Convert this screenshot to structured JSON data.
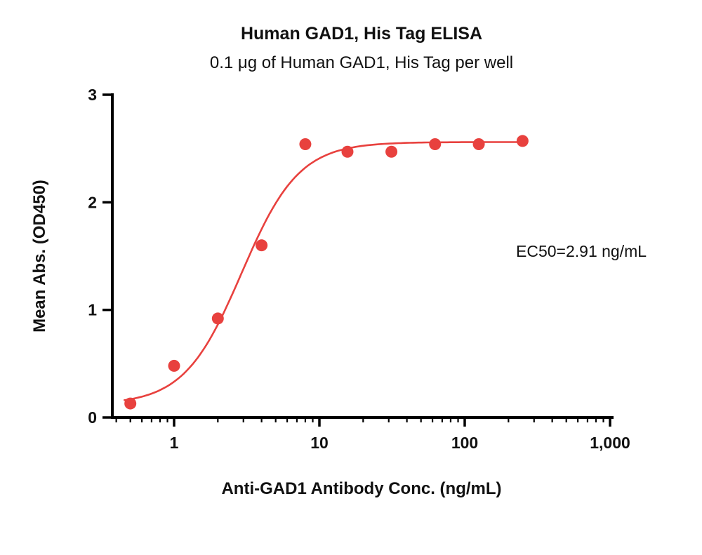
{
  "chart_data": {
    "type": "scatter",
    "title": "Human GAD1, His Tag ELISA",
    "subtitle": "0.1 μg of Human GAD1, His Tag per well",
    "xlabel": "Anti-GAD1 Antibody Conc. (ng/mL)",
    "ylabel": "Mean Abs. (OD450)",
    "annotation": "EC50=2.91 ng/mL",
    "x_scale": "log",
    "x_ticks": [
      1,
      10,
      100,
      1000
    ],
    "x_tick_labels": [
      "1",
      "10",
      "100",
      "1,000"
    ],
    "y_ticks": [
      0,
      1,
      2,
      3
    ],
    "y_tick_labels": [
      "0",
      "1",
      "2",
      "3"
    ],
    "x_range": [
      0.38,
      1130
    ],
    "y_range": [
      0,
      3
    ],
    "points": [
      {
        "x": 0.5,
        "y": 0.13
      },
      {
        "x": 1,
        "y": 0.48
      },
      {
        "x": 2,
        "y": 0.92
      },
      {
        "x": 4,
        "y": 1.6
      },
      {
        "x": 8,
        "y": 2.54
      },
      {
        "x": 15.6,
        "y": 2.47
      },
      {
        "x": 31.3,
        "y": 2.47
      },
      {
        "x": 62.5,
        "y": 2.54
      },
      {
        "x": 125,
        "y": 2.54
      },
      {
        "x": 250,
        "y": 2.57
      }
    ],
    "fit_curve": {
      "model": "4PL",
      "bottom": 0.12,
      "top": 2.56,
      "ec50": 2.91,
      "hill": 2.2,
      "x_start": 0.45,
      "x_end": 258
    },
    "colors": {
      "series": "#e8413e",
      "axis": "#000000",
      "text": "#111111"
    }
  }
}
